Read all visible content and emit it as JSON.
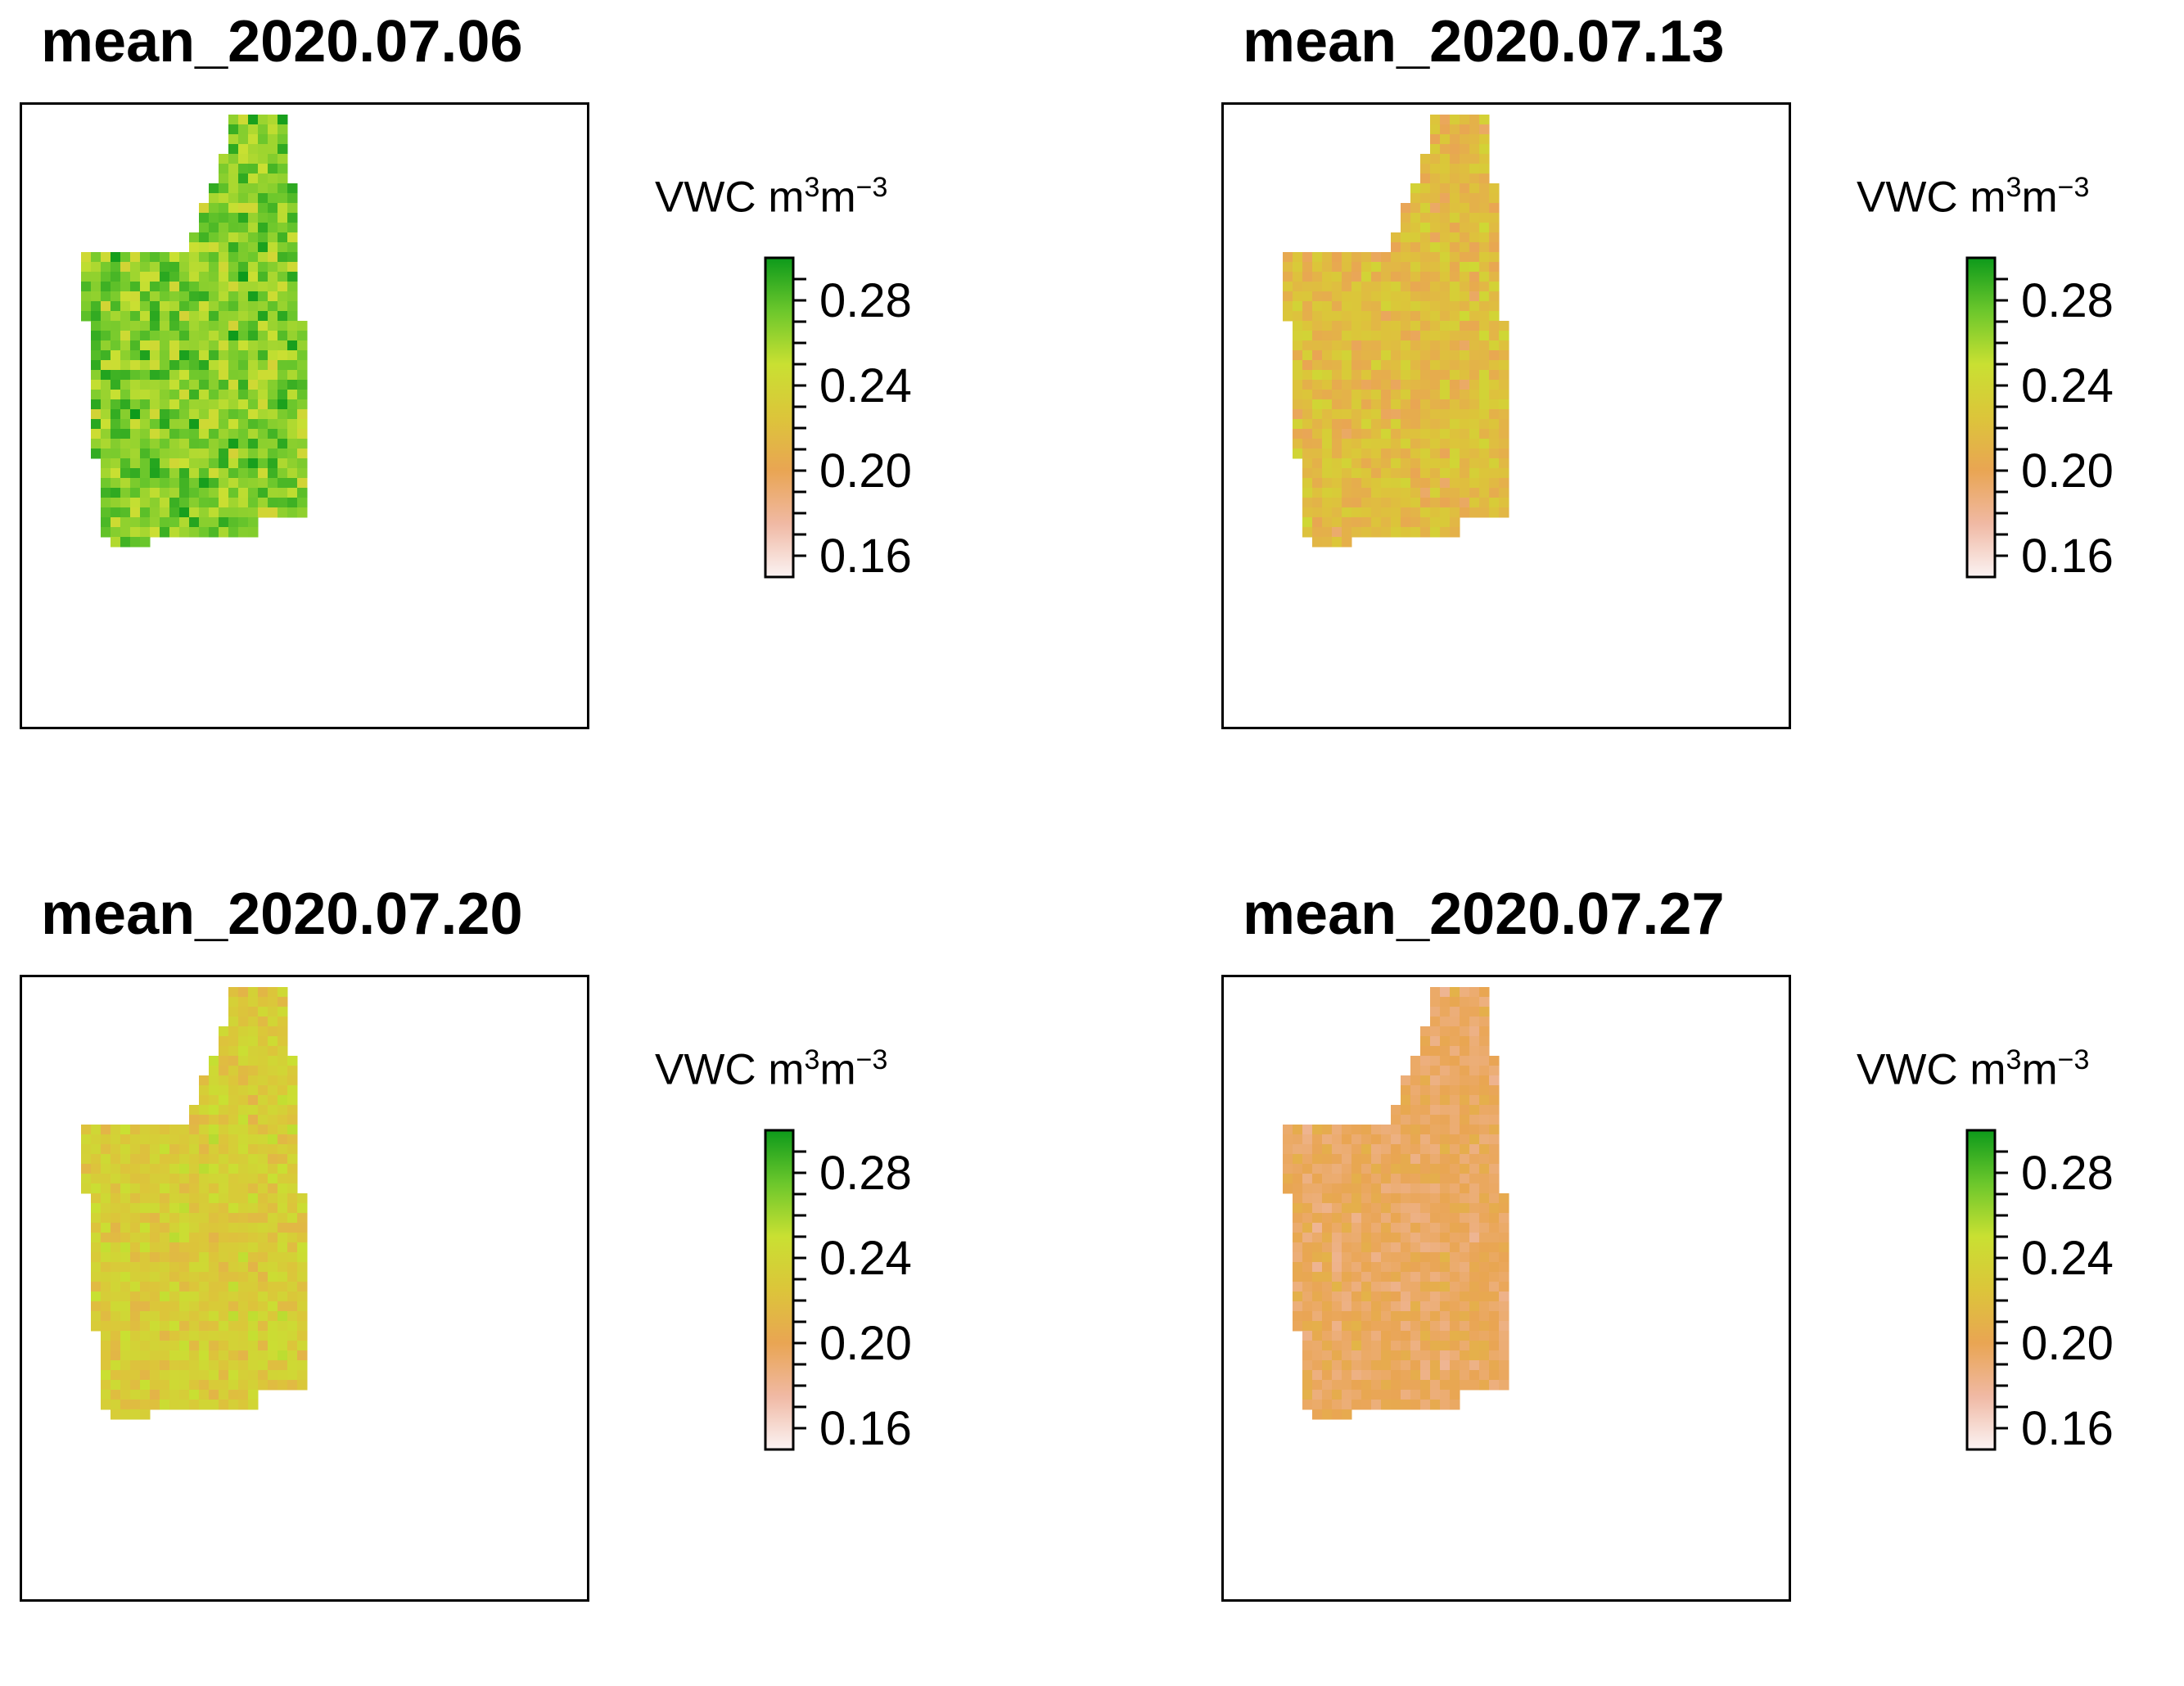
{
  "chart_data": [
    {
      "type": "heatmap",
      "title": "mean_2020.07.06",
      "legend": {
        "label": "VWC",
        "unit_base1": "m",
        "unit_exp1": "3",
        "unit_base2": "m",
        "unit_exp2": "−3",
        "ticks": [
          "0.28",
          "0.24",
          "0.20",
          "0.16"
        ]
      },
      "scale_range": [
        0.15,
        0.3
      ],
      "mean_vwc": 0.268,
      "variability": 0.028
    },
    {
      "type": "heatmap",
      "title": "mean_2020.07.13",
      "legend": {
        "label": "VWC",
        "unit_base1": "m",
        "unit_exp1": "3",
        "unit_base2": "m",
        "unit_exp2": "−3",
        "ticks": [
          "0.28",
          "0.24",
          "0.20",
          "0.16"
        ]
      },
      "scale_range": [
        0.15,
        0.3
      ],
      "mean_vwc": 0.218,
      "variability": 0.022
    },
    {
      "type": "heatmap",
      "title": "mean_2020.07.20",
      "legend": {
        "label": "VWC",
        "unit_base1": "m",
        "unit_exp1": "3",
        "unit_base2": "m",
        "unit_exp2": "−3",
        "ticks": [
          "0.28",
          "0.24",
          "0.20",
          "0.16"
        ]
      },
      "scale_range": [
        0.15,
        0.3
      ],
      "mean_vwc": 0.232,
      "variability": 0.02
    },
    {
      "type": "heatmap",
      "title": "mean_2020.07.27",
      "legend": {
        "label": "VWC",
        "unit_base1": "m",
        "unit_exp1": "3",
        "unit_base2": "m",
        "unit_exp2": "−3",
        "ticks": [
          "0.28",
          "0.24",
          "0.20",
          "0.16"
        ]
      },
      "scale_range": [
        0.15,
        0.3
      ],
      "mean_vwc": 0.196,
      "variability": 0.014
    }
  ],
  "colors": {
    "scale": [
      "#fbf3f3",
      "#f0b9a4",
      "#e9a553",
      "#dcc53a",
      "#c9e032",
      "#6cc72c",
      "#0d9a1b"
    ],
    "frame": "#000000",
    "background": "#ffffff"
  }
}
